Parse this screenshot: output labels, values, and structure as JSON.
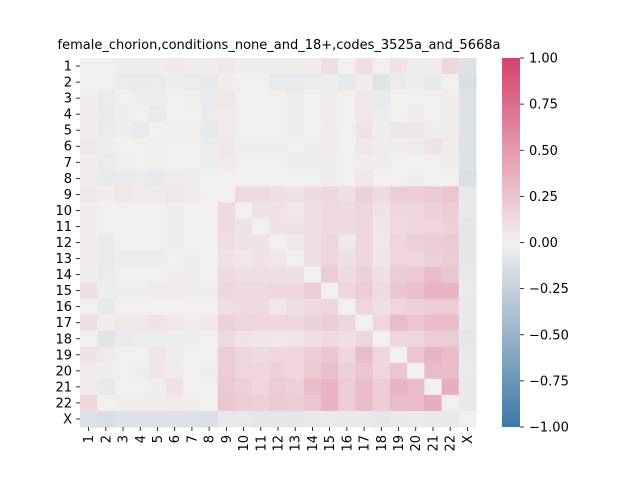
{
  "chart_data": {
    "type": "heatmap",
    "title": "female_chorion,conditions_none_and_18+,codes_3525a_and_5668a",
    "xlabel": "",
    "ylabel": "",
    "labels": [
      "1",
      "2",
      "3",
      "4",
      "5",
      "6",
      "7",
      "8",
      "9",
      "10",
      "11",
      "12",
      "13",
      "14",
      "15",
      "16",
      "17",
      "18",
      "19",
      "20",
      "21",
      "22",
      "X"
    ],
    "colorbar": {
      "vmin": -1.0,
      "vmax": 1.0,
      "ticks": [
        1.0,
        0.75,
        0.5,
        0.25,
        0.0,
        -0.25,
        -0.5,
        -0.75,
        -1.0
      ],
      "tick_labels": [
        "1.00",
        "0.75",
        "0.50",
        "0.25",
        "0.00",
        "−0.25",
        "−0.50",
        "−0.75",
        "−1.00"
      ],
      "colors": {
        "low": "#3d78a5",
        "mid": "#f2f0ef",
        "high": "#d5426d"
      }
    },
    "values": [
      [
        0.0,
        0.0,
        0.02,
        0.02,
        0.02,
        0.05,
        0.02,
        0.02,
        0.05,
        0.02,
        0.02,
        0.02,
        0.02,
        0.02,
        0.1,
        0.0,
        0.1,
        0.0,
        0.08,
        0.02,
        0.02,
        0.15,
        -0.12
      ],
      [
        0.0,
        0.0,
        -0.04,
        -0.05,
        -0.04,
        -0.02,
        -0.04,
        -0.06,
        0.02,
        0.0,
        0.0,
        -0.05,
        -0.05,
        -0.04,
        -0.02,
        -0.06,
        0.02,
        -0.1,
        -0.04,
        -0.02,
        -0.06,
        0.0,
        -0.15
      ],
      [
        0.02,
        -0.04,
        0.0,
        -0.02,
        -0.02,
        0.0,
        -0.01,
        -0.05,
        0.05,
        0.0,
        0.0,
        0.0,
        -0.03,
        0.0,
        0.02,
        0.0,
        0.05,
        -0.05,
        0.0,
        0.0,
        0.0,
        0.02,
        -0.12
      ],
      [
        0.02,
        -0.05,
        -0.02,
        0.0,
        -0.05,
        0.0,
        0.0,
        -0.04,
        0.04,
        0.0,
        0.0,
        0.0,
        -0.03,
        0.0,
        0.02,
        0.0,
        0.05,
        -0.03,
        0.0,
        0.02,
        0.0,
        0.02,
        -0.12
      ],
      [
        0.02,
        -0.04,
        -0.02,
        -0.05,
        0.0,
        -0.01,
        -0.01,
        -0.06,
        0.04,
        0.0,
        0.0,
        0.0,
        -0.03,
        0.0,
        0.04,
        0.0,
        0.08,
        -0.02,
        0.06,
        0.06,
        0.02,
        0.02,
        -0.12
      ],
      [
        0.05,
        -0.02,
        0.0,
        0.0,
        -0.01,
        0.0,
        0.0,
        -0.03,
        0.05,
        0.02,
        0.02,
        0.02,
        0.0,
        0.02,
        0.04,
        0.0,
        0.05,
        -0.02,
        0.02,
        0.04,
        0.08,
        0.04,
        -0.12
      ],
      [
        0.02,
        -0.04,
        -0.01,
        0.0,
        -0.01,
        0.0,
        0.0,
        -0.02,
        0.04,
        0.0,
        0.0,
        0.0,
        -0.02,
        -0.02,
        0.02,
        0.0,
        0.02,
        -0.02,
        0.0,
        0.0,
        0.0,
        0.02,
        -0.12
      ],
      [
        0.02,
        -0.06,
        -0.05,
        -0.04,
        -0.06,
        -0.03,
        -0.02,
        0.0,
        0.0,
        0.0,
        0.0,
        0.0,
        0.0,
        0.0,
        0.02,
        0.0,
        0.05,
        0.0,
        0.0,
        0.02,
        0.0,
        0.0,
        -0.14
      ],
      [
        0.05,
        0.02,
        0.05,
        0.04,
        0.04,
        0.05,
        0.04,
        0.0,
        0.0,
        0.12,
        0.12,
        0.1,
        0.08,
        0.12,
        0.15,
        0.1,
        0.18,
        0.12,
        0.2,
        0.2,
        0.22,
        0.25,
        -0.06
      ],
      [
        0.02,
        0.0,
        0.0,
        0.0,
        0.0,
        0.02,
        0.0,
        0.0,
        0.12,
        0.0,
        0.08,
        0.08,
        0.05,
        0.1,
        0.12,
        0.12,
        0.15,
        0.08,
        0.15,
        0.15,
        0.18,
        0.2,
        -0.06
      ],
      [
        0.02,
        0.0,
        0.0,
        0.0,
        0.0,
        0.02,
        0.0,
        0.0,
        0.12,
        0.08,
        0.0,
        0.08,
        0.08,
        0.1,
        0.12,
        0.12,
        0.15,
        0.06,
        0.12,
        0.15,
        0.15,
        0.18,
        -0.08
      ],
      [
        0.02,
        -0.05,
        0.0,
        0.0,
        0.0,
        0.02,
        0.0,
        0.0,
        0.1,
        0.08,
        0.08,
        0.0,
        0.05,
        0.1,
        0.15,
        0.05,
        0.15,
        0.05,
        0.15,
        0.18,
        0.2,
        0.22,
        -0.08
      ],
      [
        0.02,
        -0.05,
        -0.03,
        -0.03,
        -0.03,
        0.0,
        -0.02,
        0.0,
        0.08,
        0.05,
        0.08,
        0.05,
        0.0,
        0.1,
        0.15,
        0.1,
        0.15,
        0.06,
        0.15,
        0.15,
        0.18,
        0.2,
        -0.08
      ],
      [
        0.02,
        -0.04,
        0.0,
        0.0,
        0.0,
        0.02,
        -0.02,
        0.0,
        0.12,
        0.1,
        0.1,
        0.1,
        0.1,
        0.0,
        0.2,
        0.12,
        0.18,
        0.1,
        0.2,
        0.22,
        0.3,
        0.25,
        -0.06
      ],
      [
        0.1,
        -0.02,
        0.02,
        0.02,
        0.04,
        0.04,
        0.02,
        0.02,
        0.15,
        0.12,
        0.12,
        0.15,
        0.15,
        0.2,
        0.0,
        0.15,
        0.2,
        0.12,
        0.25,
        0.28,
        0.35,
        0.35,
        -0.05
      ],
      [
        0.0,
        -0.06,
        0.0,
        0.0,
        0.0,
        0.0,
        0.0,
        0.0,
        0.1,
        0.12,
        0.12,
        0.05,
        0.1,
        0.12,
        0.15,
        0.0,
        0.15,
        0.1,
        0.15,
        0.18,
        0.2,
        0.2,
        -0.06
      ],
      [
        0.1,
        0.02,
        0.05,
        0.05,
        0.08,
        0.05,
        0.02,
        0.05,
        0.18,
        0.15,
        0.15,
        0.15,
        0.15,
        0.18,
        0.2,
        0.15,
        0.0,
        0.15,
        0.3,
        0.25,
        0.3,
        0.3,
        -0.06
      ],
      [
        0.0,
        -0.1,
        -0.05,
        -0.03,
        -0.02,
        -0.02,
        -0.02,
        0.0,
        0.12,
        0.08,
        0.06,
        0.05,
        0.06,
        0.1,
        0.12,
        0.1,
        0.15,
        0.0,
        0.15,
        0.15,
        0.2,
        0.2,
        -0.08
      ],
      [
        0.08,
        -0.04,
        0.0,
        0.0,
        0.06,
        0.02,
        0.0,
        0.0,
        0.2,
        0.15,
        0.12,
        0.15,
        0.15,
        0.2,
        0.25,
        0.15,
        0.3,
        0.15,
        0.0,
        0.25,
        0.35,
        0.3,
        -0.06
      ],
      [
        0.02,
        -0.02,
        0.0,
        0.02,
        0.06,
        0.04,
        0.0,
        0.02,
        0.2,
        0.15,
        0.15,
        0.18,
        0.15,
        0.22,
        0.28,
        0.18,
        0.25,
        0.15,
        0.25,
        0.0,
        0.3,
        0.3,
        -0.05
      ],
      [
        0.02,
        -0.06,
        0.0,
        0.0,
        0.02,
        0.08,
        0.0,
        0.0,
        0.22,
        0.18,
        0.15,
        0.2,
        0.18,
        0.3,
        0.35,
        0.2,
        0.3,
        0.2,
        0.35,
        0.3,
        0.0,
        0.38,
        -0.06
      ],
      [
        0.15,
        0.0,
        0.02,
        0.02,
        0.02,
        0.04,
        0.02,
        0.0,
        0.25,
        0.2,
        0.18,
        0.22,
        0.2,
        0.25,
        0.35,
        0.2,
        0.3,
        0.2,
        0.3,
        0.3,
        0.38,
        0.0,
        -0.06
      ],
      [
        -0.12,
        -0.15,
        -0.12,
        -0.12,
        -0.12,
        -0.12,
        -0.12,
        -0.14,
        -0.06,
        -0.06,
        -0.08,
        -0.08,
        -0.08,
        -0.06,
        -0.05,
        -0.06,
        -0.06,
        -0.08,
        -0.06,
        -0.05,
        -0.06,
        -0.06,
        0.0
      ]
    ]
  }
}
